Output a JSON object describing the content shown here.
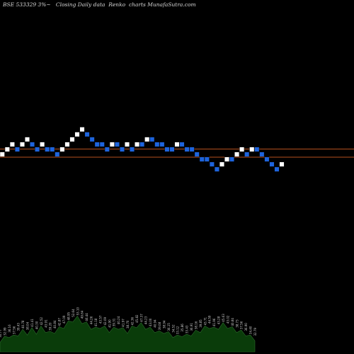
{
  "chart_data": {
    "type": "renko",
    "title": "BSE 533329 3%~   Closing Daily data  Renko  charts MunafaSutra.com",
    "colors": {
      "background": "#000000",
      "up_brick": "#ffffff",
      "down_brick": "#1e64dc",
      "reference_line": "#b4501e",
      "volume_fill": "#0a3c0a",
      "volume_stroke": "#2b6b2b",
      "text": "#d8d8d8"
    },
    "brick_levels": [
      0,
      1,
      2,
      1,
      2,
      3,
      2,
      1,
      2,
      1,
      1,
      0,
      1,
      2,
      3,
      4,
      5,
      4,
      3,
      2,
      2,
      1,
      2,
      2,
      1,
      2,
      1,
      2,
      2,
      3,
      3,
      2,
      2,
      1,
      1,
      2,
      2,
      1,
      1,
      0,
      -1,
      -1,
      -2,
      -3,
      -2,
      -1,
      -1,
      0,
      1,
      0,
      1,
      1,
      0,
      -1,
      -2,
      -3,
      -2
    ],
    "volume_profile": [
      0.28,
      0.33,
      0.4,
      0.36,
      0.44,
      0.5,
      0.46,
      0.54,
      0.48,
      0.58,
      0.52,
      0.45,
      0.5,
      0.56,
      0.62,
      0.7,
      0.78,
      0.82,
      0.74,
      0.68,
      0.6,
      0.55,
      0.62,
      0.58,
      0.52,
      0.55,
      0.6,
      0.54,
      0.5,
      0.58,
      0.64,
      0.66,
      0.6,
      0.55,
      0.52,
      0.46,
      0.5,
      0.44,
      0.4,
      0.36,
      0.42,
      0.38,
      0.44,
      0.48,
      0.52,
      0.58,
      0.62,
      0.55,
      0.6,
      0.66,
      0.62,
      0.56,
      0.52,
      0.48,
      0.44,
      0.36,
      0.32
    ],
    "volume_labels": [
      "30.77",
      "32.99",
      "36.16",
      "37.56",
      "39.43",
      "40.78",
      "38.04",
      "41.41",
      "40.30",
      "42.52",
      "43.91",
      "39.20",
      "40.84",
      "42.87",
      "47.09",
      "48.95",
      "52.64",
      "53.10",
      "49.64",
      "46.44",
      "44.26",
      "41.18",
      "43.57",
      "42.09",
      "41.90",
      "39.31",
      "40.24",
      "41.97",
      "38.70",
      "42.36",
      "45.82",
      "47.37",
      "44.23",
      "43.00",
      "40.94",
      "39.08",
      "38.94",
      "36.15",
      "34.52",
      "33.12",
      "35.86",
      "33.43",
      "36.91",
      "38.16",
      "39.85",
      "43.71",
      "44.59",
      "41.96",
      "43.28",
      "45.63",
      "43.02",
      "40.84",
      "38.73",
      "37.56",
      "36.90",
      "34.40",
      "32.79"
    ]
  }
}
